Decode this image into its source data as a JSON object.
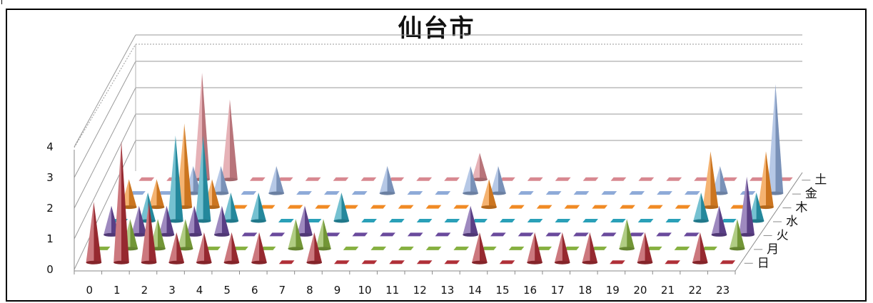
{
  "chart_data": {
    "type": "bar",
    "subtype": "3d-cone",
    "title": "仙台市",
    "grid": true,
    "ylim": [
      0,
      4
    ],
    "y_ticks": [
      "0",
      "1",
      "2",
      "3",
      "4"
    ],
    "categories": [
      "0",
      "1",
      "2",
      "3",
      "4",
      "5",
      "6",
      "7",
      "8",
      "9",
      "10",
      "11",
      "12",
      "13",
      "14",
      "15",
      "16",
      "17",
      "18",
      "19",
      "20",
      "21",
      "22",
      "23"
    ],
    "series": [
      {
        "name": "日",
        "color": "#b03038",
        "values": [
          2,
          4,
          2,
          1,
          1,
          1,
          1,
          0,
          1,
          0,
          0,
          0,
          0,
          0,
          1,
          0,
          1,
          1,
          1,
          0,
          1,
          0,
          1,
          0
        ]
      },
      {
        "name": "月",
        "color": "#86b040",
        "values": [
          0,
          1,
          1,
          1,
          0,
          0,
          0,
          1,
          1,
          0,
          0,
          0,
          0,
          0,
          0,
          0,
          0,
          0,
          0,
          1,
          0,
          0,
          0,
          1
        ]
      },
      {
        "name": "火",
        "color": "#6a4a9c",
        "values": [
          1,
          1,
          1,
          1,
          1,
          0,
          0,
          1,
          0,
          0,
          0,
          0,
          0,
          1,
          0,
          0,
          0,
          0,
          0,
          0,
          0,
          0,
          1,
          2
        ]
      },
      {
        "name": "水",
        "color": "#2aa0b8",
        "values": [
          0,
          1,
          3,
          3,
          1,
          1,
          0,
          0,
          1,
          0,
          0,
          0,
          0,
          0,
          0,
          0,
          0,
          0,
          0,
          0,
          0,
          1,
          0,
          1
        ]
      },
      {
        "name": "木",
        "color": "#f08a24",
        "values": [
          1,
          1,
          3,
          1,
          0,
          0,
          0,
          0,
          0,
          0,
          0,
          0,
          0,
          1,
          0,
          0,
          0,
          0,
          0,
          0,
          0,
          2,
          0,
          2
        ]
      },
      {
        "name": "金",
        "color": "#8eaad8",
        "values": [
          0,
          0,
          1,
          1,
          0,
          1,
          0,
          0,
          0,
          1,
          0,
          0,
          1,
          1,
          0,
          0,
          0,
          0,
          0,
          0,
          0,
          1,
          0,
          4
        ]
      },
      {
        "name": "土",
        "color": "#d88890",
        "values": [
          0,
          0,
          4,
          3,
          0,
          0,
          0,
          0,
          0,
          0,
          0,
          0,
          1,
          0,
          0,
          0,
          0,
          0,
          0,
          0,
          0,
          0,
          0,
          0
        ]
      }
    ]
  }
}
